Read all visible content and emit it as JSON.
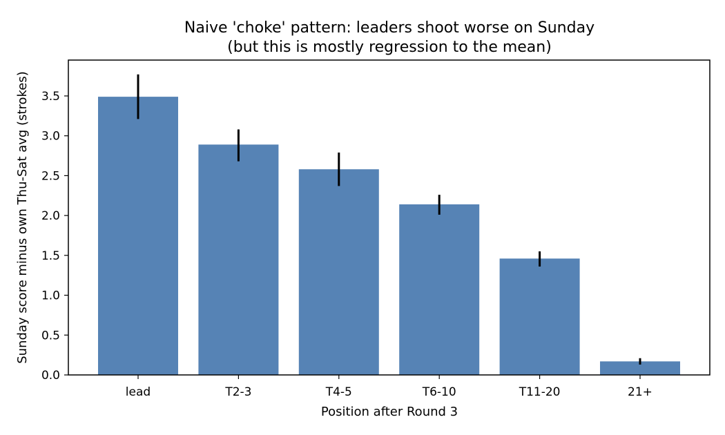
{
  "chart_data": {
    "type": "bar",
    "title": "Naive 'choke' pattern: leaders shoot worse on Sunday",
    "subtitle": "(but this is mostly regression to the mean)",
    "xlabel": "Position after Round 3",
    "ylabel": "Sunday score minus own Thu-Sat avg (strokes)",
    "categories": [
      "lead",
      "T2-3",
      "T4-5",
      "T6-10",
      "T11-20",
      "21+"
    ],
    "values": [
      3.49,
      2.89,
      2.58,
      2.14,
      1.46,
      0.17
    ],
    "error_low": [
      3.21,
      2.68,
      2.37,
      2.01,
      1.36,
      0.13
    ],
    "error_high": [
      3.77,
      3.08,
      2.79,
      2.26,
      1.55,
      0.21
    ],
    "ylim": [
      0,
      3.95
    ],
    "yticks": [
      "0.0",
      "0.5",
      "1.0",
      "1.5",
      "2.0",
      "2.5",
      "3.0",
      "3.5"
    ],
    "ytick_values": [
      0,
      0.5,
      1.0,
      1.5,
      2.0,
      2.5,
      3.0,
      3.5
    ],
    "grid": false,
    "colors": {
      "bar": "#5683b5",
      "errorbar": "#000000",
      "axis": "#000000"
    }
  }
}
